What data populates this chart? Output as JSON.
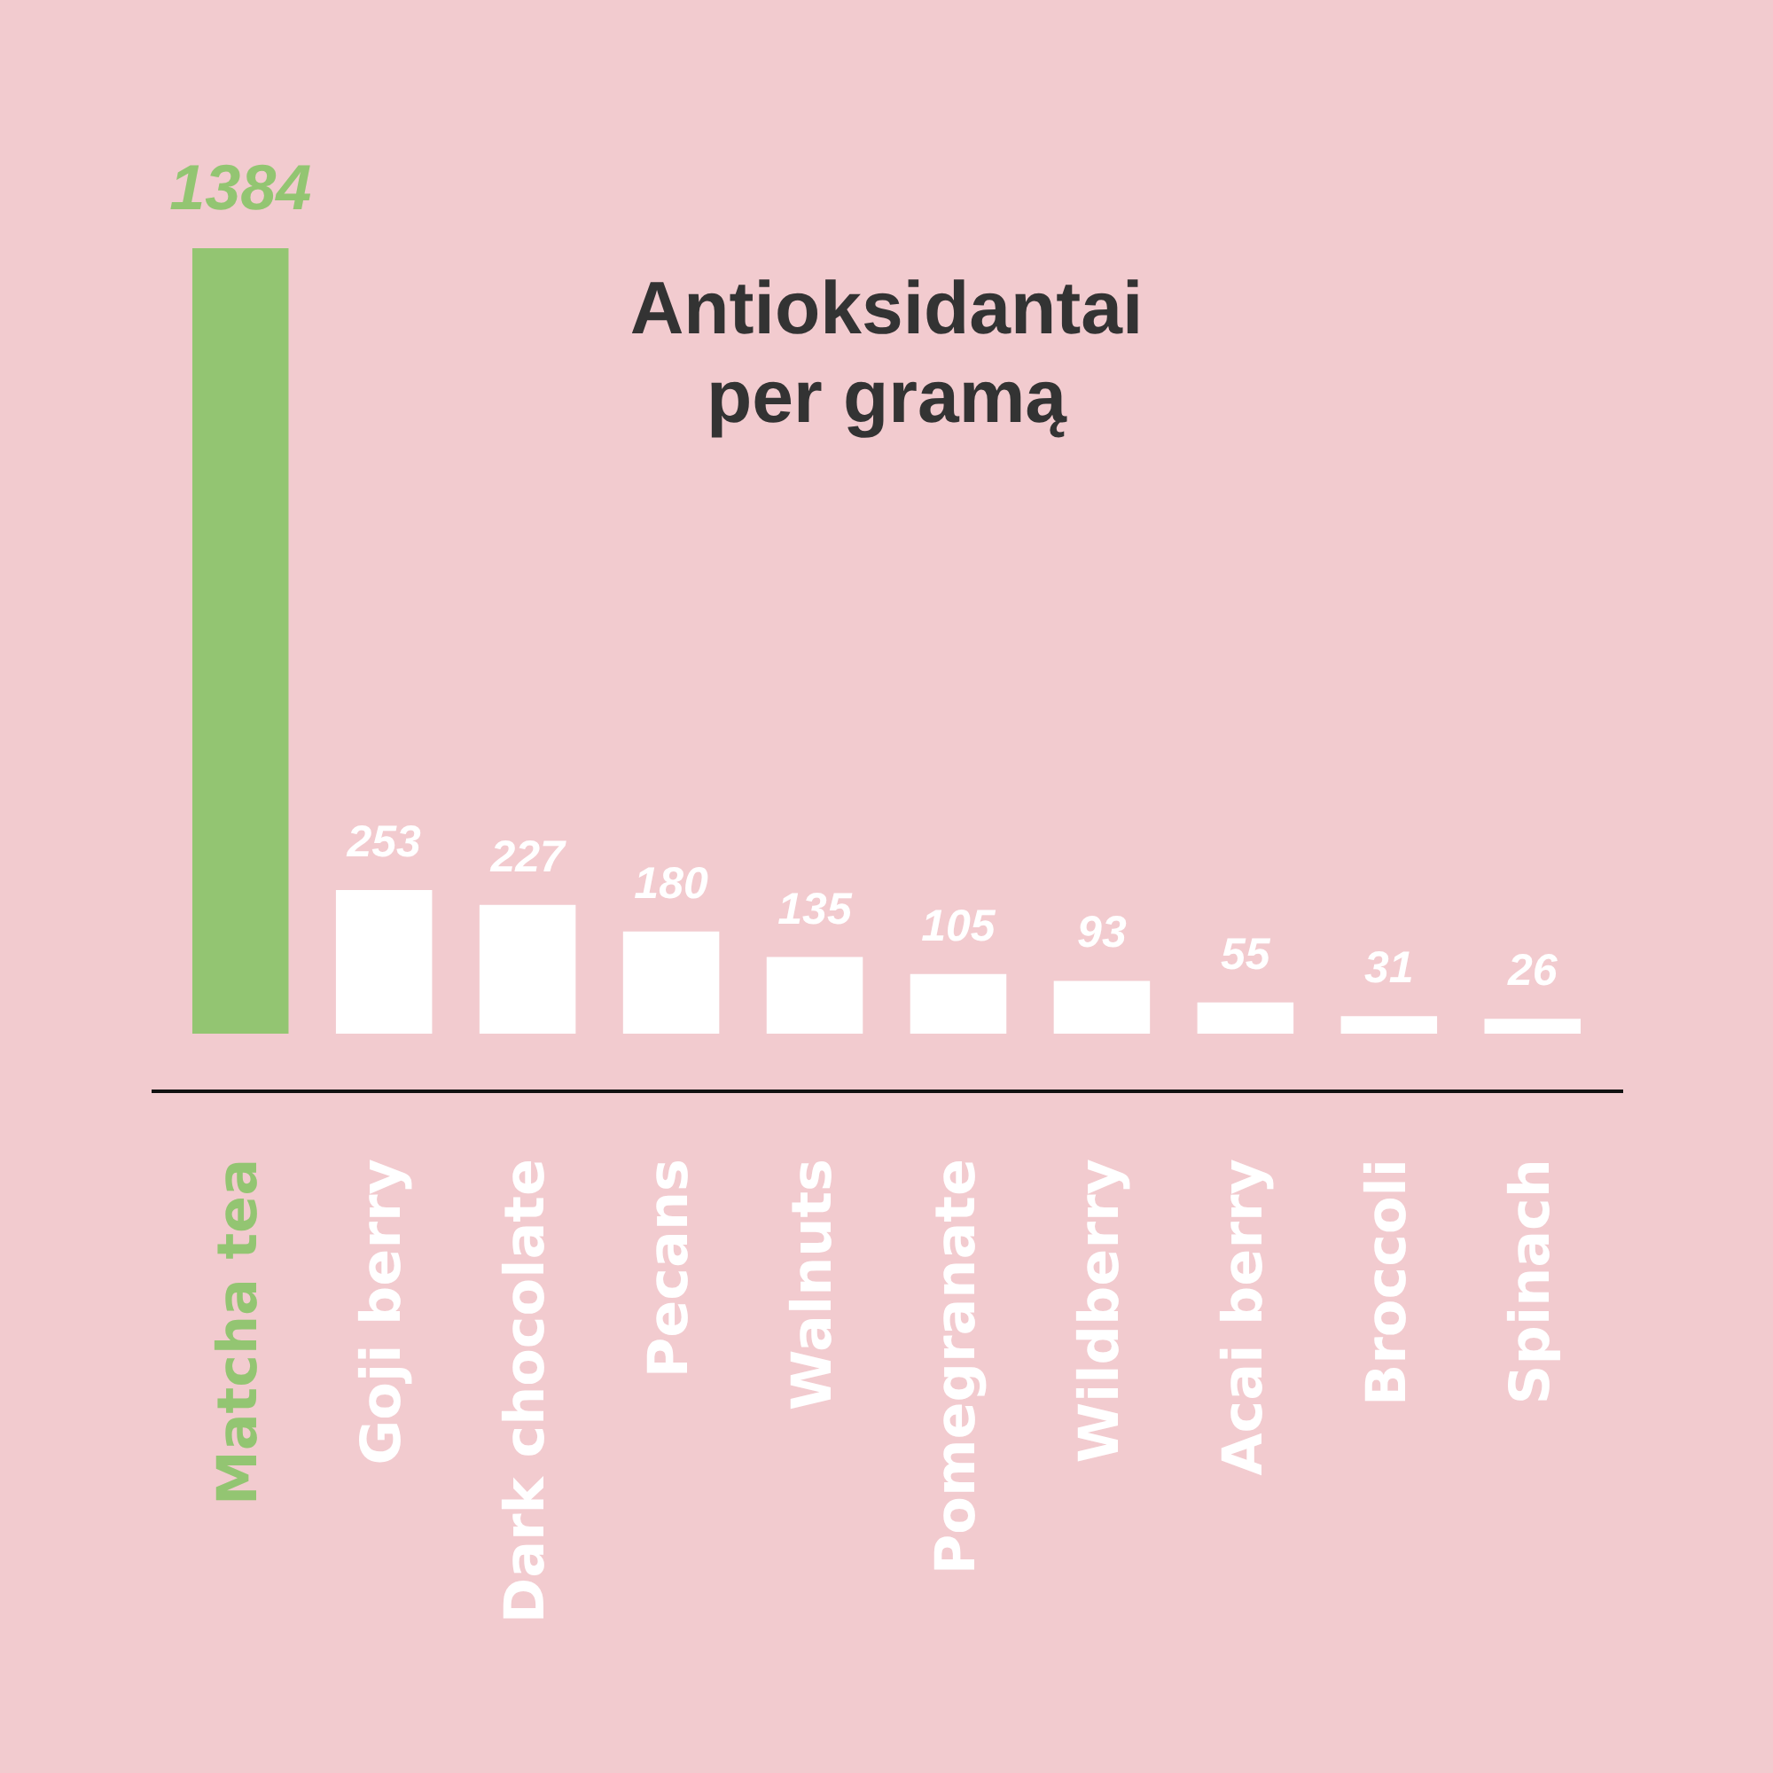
{
  "chart_data": {
    "type": "bar",
    "title": "Antioksidantai per gramą",
    "categories": [
      "Matcha tea",
      "Goji berry",
      "Dark chocolate",
      "Pecans",
      "Walnuts",
      "Pomegranate",
      "Wildberry",
      "Acai berry",
      "Broccoli",
      "Spinach"
    ],
    "values": [
      1384,
      253,
      227,
      180,
      135,
      105,
      93,
      55,
      31,
      26
    ],
    "colors": [
      "#93c572",
      "#ffffff",
      "#ffffff",
      "#ffffff",
      "#ffffff",
      "#ffffff",
      "#ffffff",
      "#ffffff",
      "#ffffff",
      "#ffffff"
    ],
    "data_labels": true
  }
}
